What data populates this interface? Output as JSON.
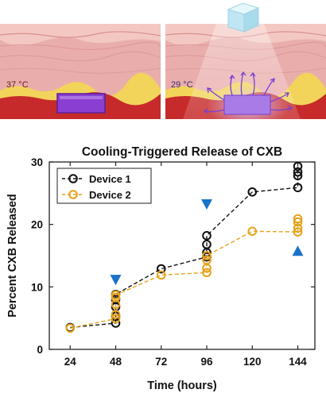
{
  "panels": {
    "left_temperature": "37 °C",
    "right_temperature": "29 °C",
    "colors": {
      "skin_top": "#f3c3bd",
      "dermis": "#e7a7a5",
      "fat": "#f4d55a",
      "tissue": "#c72a2a",
      "device": "#8a3fd2",
      "ice": "#bfe6f2"
    },
    "icons": [
      "ice-cube-icon",
      "implant-device-icon",
      "release-arrow-icon"
    ]
  },
  "chart_data": {
    "type": "scatter",
    "title": "Cooling-Triggered Release of CXB",
    "xlabel": "Time (hours)",
    "ylabel": "Percent CXB Released",
    "xlim": [
      13,
      153
    ],
    "ylim": [
      0,
      30
    ],
    "xticks": [
      24,
      48,
      72,
      96,
      120,
      144
    ],
    "yticks": [
      0,
      10,
      20,
      30
    ],
    "grid": false,
    "legend_position": "top-left",
    "series": [
      {
        "name": "Device 1",
        "color": "#111111",
        "line": [
          [
            24,
            3.5
          ],
          [
            48,
            4.2
          ],
          [
            48,
            8.8
          ],
          [
            72,
            12.9
          ],
          [
            96,
            14.8
          ],
          [
            96,
            18.2
          ],
          [
            120,
            25.2
          ],
          [
            144,
            25.9
          ],
          [
            144,
            29.3
          ]
        ],
        "points": [
          [
            24,
            3.5
          ],
          [
            48,
            4.2
          ],
          [
            48,
            5.3
          ],
          [
            48,
            6.8
          ],
          [
            48,
            8.0
          ],
          [
            48,
            8.8
          ],
          [
            72,
            12.9
          ],
          [
            96,
            14.8
          ],
          [
            96,
            15.5
          ],
          [
            96,
            16.8
          ],
          [
            96,
            18.2
          ],
          [
            120,
            25.2
          ],
          [
            144,
            25.9
          ],
          [
            144,
            27.8
          ],
          [
            144,
            28.4
          ],
          [
            144,
            29.3
          ]
        ]
      },
      {
        "name": "Device 2",
        "color": "#e6a21a",
        "line": [
          [
            24,
            3.4
          ],
          [
            48,
            4.9
          ],
          [
            48,
            8.7
          ],
          [
            72,
            11.9
          ],
          [
            96,
            12.3
          ],
          [
            96,
            15.0
          ],
          [
            120,
            18.9
          ],
          [
            144,
            18.8
          ],
          [
            144,
            20.9
          ]
        ],
        "points": [
          [
            24,
            3.4
          ],
          [
            48,
            4.9
          ],
          [
            48,
            5.6
          ],
          [
            48,
            7.2
          ],
          [
            48,
            8.3
          ],
          [
            48,
            8.7
          ],
          [
            72,
            11.9
          ],
          [
            96,
            12.3
          ],
          [
            96,
            13.0
          ],
          [
            96,
            14.3
          ],
          [
            96,
            15.0
          ],
          [
            120,
            18.9
          ],
          [
            144,
            18.8
          ],
          [
            144,
            19.4
          ],
          [
            144,
            20.4
          ],
          [
            144,
            20.9
          ]
        ]
      }
    ],
    "cooling_markers": [
      {
        "x": 48,
        "y": 11.1,
        "direction": "down"
      },
      {
        "x": 96,
        "y": 23.2,
        "direction": "down"
      },
      {
        "x": 144,
        "y": 15.8,
        "direction": "up"
      }
    ],
    "marker_color": "#1a73c8"
  }
}
